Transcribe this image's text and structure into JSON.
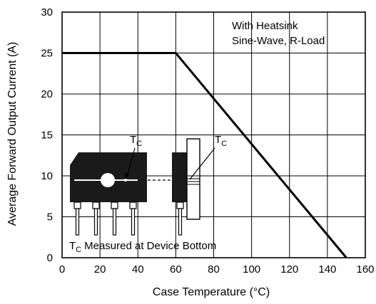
{
  "chart_data": {
    "type": "line",
    "title": "",
    "xlabel": "Case Temperature (°C)",
    "ylabel": "Average Forward Output Current (A)",
    "xlim": [
      0,
      160
    ],
    "ylim": [
      0,
      30
    ],
    "xticks": [
      "0",
      "20",
      "40",
      "60",
      "80",
      "100",
      "120",
      "140",
      "160"
    ],
    "yticks": [
      "0",
      "5",
      "10",
      "15",
      "20",
      "25",
      "30"
    ],
    "grid": true,
    "series": [
      {
        "x": [
          0,
          60,
          150
        ],
        "y": [
          25,
          25,
          0
        ]
      }
    ],
    "annotations": {
      "conditions_line1": "With Heatsink",
      "conditions_line2": "Sine-Wave, R-Load",
      "tc_label_left": "T",
      "tc_label_right": "T",
      "tc_subscript": "C",
      "measured_note": "Measured at Device Bottom"
    },
    "colors": {
      "line": "#000000",
      "grid": "#000000",
      "device": "#1a1a1a"
    }
  }
}
